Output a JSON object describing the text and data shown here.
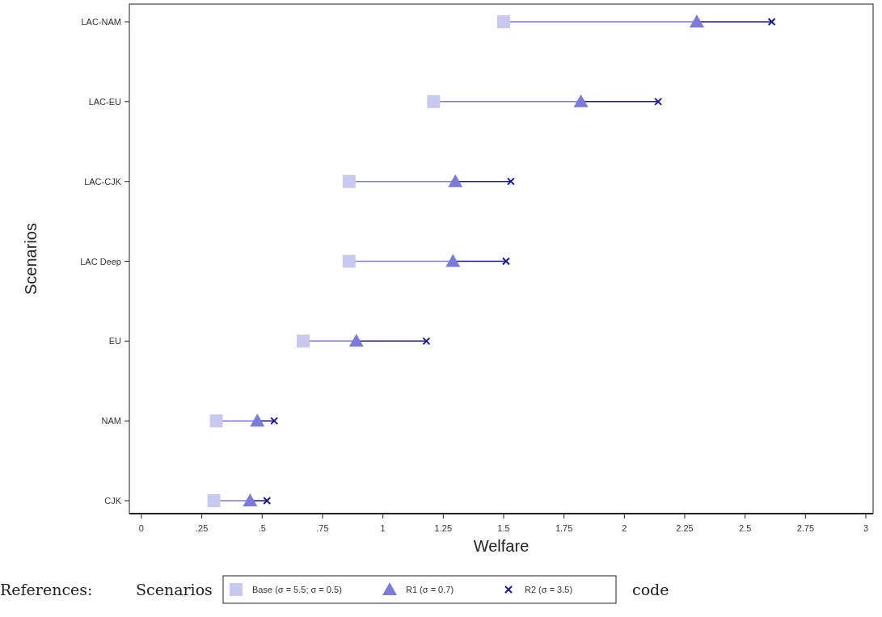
{
  "chart_data": {
    "type": "scatter",
    "orientation": "horizontal",
    "xlabel": "Welfare",
    "ylabel": "Scenarios",
    "categories": [
      "LAC-NAM",
      "LAC-EU",
      "LAC-CJK",
      "LAC Deep",
      "EU",
      "NAM",
      "CJK"
    ],
    "series": [
      {
        "name": "Base (σ = 5.5; σ = 0.5)",
        "color": "#c8c8f0",
        "marker": "square",
        "values": [
          1.5,
          1.21,
          0.86,
          0.86,
          0.67,
          0.31,
          0.3
        ]
      },
      {
        "name": "R1 (σ = 0.7)",
        "color": "#7b7bd9",
        "marker": "triangle",
        "values": [
          2.3,
          1.82,
          1.3,
          1.29,
          0.89,
          0.48,
          0.45
        ]
      },
      {
        "name": "R2 (σ = 3.5)",
        "color": "#1a1a8c",
        "marker": "cross",
        "values": [
          2.61,
          2.14,
          1.53,
          1.51,
          1.18,
          0.55,
          0.52
        ]
      }
    ],
    "xlim": [
      -0.05,
      3.03
    ],
    "xticks": [
      0,
      {
        "value": 0.25,
        "label": ".25"
      },
      {
        "value": 0.5,
        "label": ".5"
      },
      {
        "value": 0.75,
        "label": ".75"
      },
      1,
      1.25,
      1.5,
      1.75,
      2,
      2.25,
      2.5,
      2.75,
      3
    ],
    "grid": false,
    "legend": "bottom",
    "annotations": [
      "References:",
      "Scenarios",
      "code"
    ]
  }
}
